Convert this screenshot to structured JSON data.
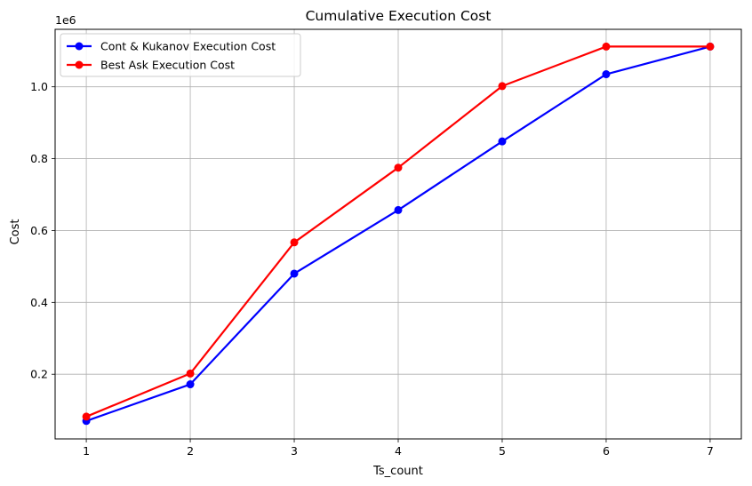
{
  "chart_data": {
    "type": "line",
    "title": "Cumulative Execution Cost",
    "xlabel": "Ts_count",
    "ylabel": "Cost",
    "y_offset_label": "1e6",
    "x": [
      1,
      2,
      3,
      4,
      5,
      6,
      7
    ],
    "xlim": [
      0.7,
      7.3
    ],
    "ylim": [
      20000,
      1160000
    ],
    "x_ticks": [
      1,
      2,
      3,
      4,
      5,
      6,
      7
    ],
    "y_ticks": [
      200000,
      400000,
      600000,
      800000,
      1000000
    ],
    "y_tick_labels": [
      "0.2",
      "0.4",
      "0.6",
      "0.8",
      "1.0"
    ],
    "grid": true,
    "legend_position": "upper-left",
    "series": [
      {
        "name": "Cont & Kukanov Execution Cost",
        "color": "#0000ff",
        "values": [
          70000,
          172000,
          480000,
          657000,
          848000,
          1035000,
          1112000
        ]
      },
      {
        "name": "Best Ask Execution Cost",
        "color": "#ff0000",
        "values": [
          82000,
          202000,
          567000,
          775000,
          1002000,
          1112000,
          1112000
        ]
      }
    ]
  }
}
